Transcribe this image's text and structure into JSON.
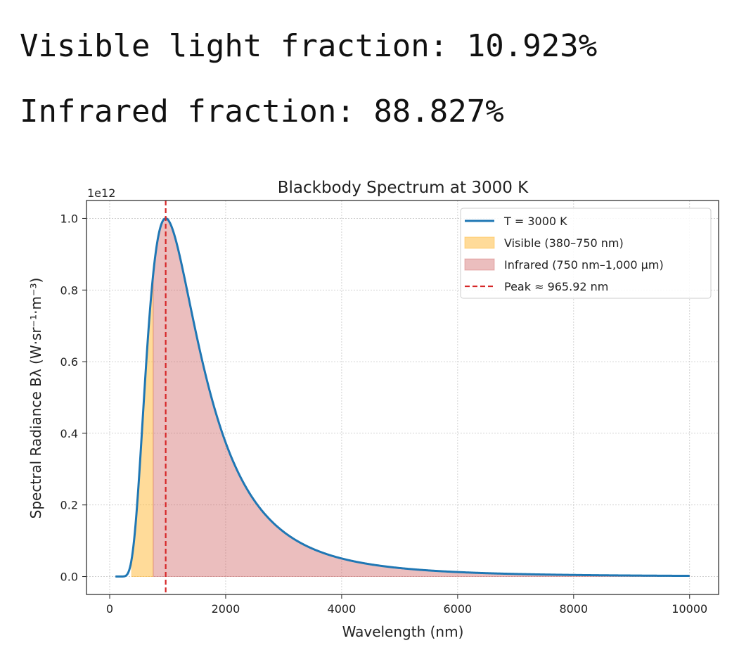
{
  "output": {
    "visible_line": "Visible light fraction: 10.923%",
    "infrared_line": "Infrared fraction: 88.827%"
  },
  "chart_data": {
    "type": "line",
    "title": "Blackbody Spectrum at 3000 K",
    "xlabel": "Wavelength (nm)",
    "ylabel": "Spectral Radiance  Bλ  (W·sr⁻¹·m⁻³)",
    "y_offset_label": "1e12",
    "temperature_K": 3000,
    "xlim": [
      -400,
      10500
    ],
    "ylim": [
      -0.05,
      1.05
    ],
    "x_range": [
      100,
      10000
    ],
    "y_scale_factor": 1000000000000.0,
    "xticks": [
      0,
      2000,
      4000,
      6000,
      8000,
      10000
    ],
    "xtick_labels": [
      "0",
      "2000",
      "4000",
      "6000",
      "8000",
      "10000"
    ],
    "yticks": [
      0.0,
      0.2,
      0.4,
      0.6,
      0.8,
      1.0
    ],
    "ytick_labels": [
      "0.0",
      "0.2",
      "0.4",
      "0.6",
      "0.8",
      "1.0"
    ],
    "grid": true,
    "legend_position": "top-right",
    "series": [
      {
        "name": "T = 3000 K",
        "color": "#1f77b4",
        "style": "line"
      }
    ],
    "bands": [
      {
        "name": "Visible (380–750 nm)",
        "x_start": 380,
        "x_end": 750,
        "color": "#ffb733",
        "opacity": 0.5
      },
      {
        "name": "Infrared (750 nm–1,000 µm)",
        "x_start": 750,
        "x_end": 10000,
        "color": "#cd5c5c",
        "opacity": 0.4
      }
    ],
    "peak": {
      "name": "Peak ≈ 965.92 nm",
      "x": 965.92,
      "color": "#d62728"
    }
  }
}
